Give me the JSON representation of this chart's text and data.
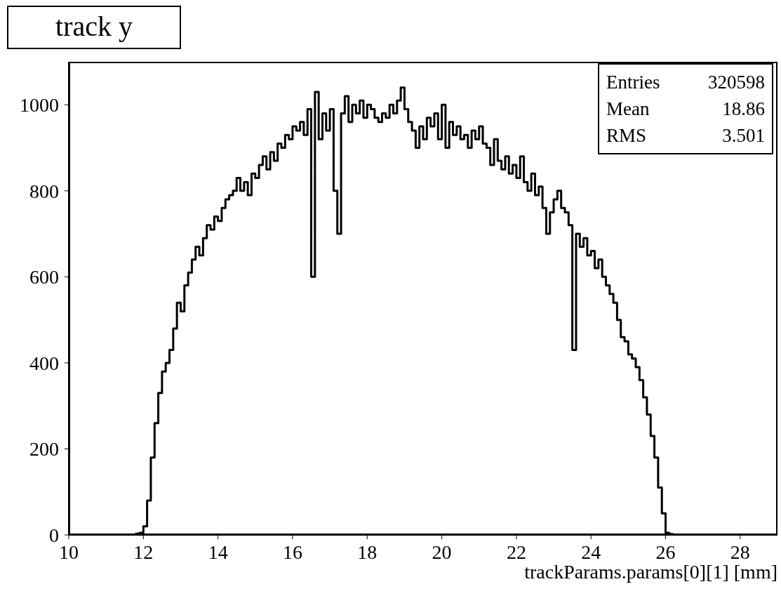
{
  "chart_data": {
    "type": "histogram",
    "title": "track y",
    "xlabel": "trackParams.params[0][1] [mm]",
    "bins": [
      10,
      10.1,
      10.2,
      10.3,
      10.4,
      10.5,
      10.6,
      10.7,
      10.8,
      10.9,
      11,
      11.1,
      11.2,
      11.3,
      11.4,
      11.5,
      11.6,
      11.7,
      11.8,
      11.9,
      12,
      12.1,
      12.2,
      12.3,
      12.4,
      12.5,
      12.6,
      12.7,
      12.8,
      12.9,
      13,
      13.1,
      13.2,
      13.3,
      13.4,
      13.5,
      13.6,
      13.7,
      13.8,
      13.9,
      14,
      14.1,
      14.2,
      14.3,
      14.4,
      14.5,
      14.6,
      14.7,
      14.8,
      14.9,
      15,
      15.1,
      15.2,
      15.3,
      15.4,
      15.5,
      15.6,
      15.7,
      15.8,
      15.9,
      16,
      16.1,
      16.2,
      16.3,
      16.4,
      16.5,
      16.6,
      16.7,
      16.8,
      16.9,
      17,
      17.1,
      17.2,
      17.3,
      17.4,
      17.5,
      17.6,
      17.7,
      17.8,
      17.9,
      18,
      18.1,
      18.2,
      18.3,
      18.4,
      18.5,
      18.6,
      18.7,
      18.8,
      18.9,
      19,
      19.1,
      19.2,
      19.3,
      19.4,
      19.5,
      19.6,
      19.7,
      19.8,
      19.9,
      20,
      20.1,
      20.2,
      20.3,
      20.4,
      20.5,
      20.6,
      20.7,
      20.8,
      20.9,
      21,
      21.1,
      21.2,
      21.3,
      21.4,
      21.5,
      21.6,
      21.7,
      21.8,
      21.9,
      22,
      22.1,
      22.2,
      22.3,
      22.4,
      22.5,
      22.6,
      22.7,
      22.8,
      22.9,
      23,
      23.1,
      23.2,
      23.3,
      23.4,
      23.5,
      23.6,
      23.7,
      23.8,
      23.9,
      24,
      24.1,
      24.2,
      24.3,
      24.4,
      24.5,
      24.6,
      24.7,
      24.8,
      24.9,
      25,
      25.1,
      25.2,
      25.3,
      25.4,
      25.5,
      25.6,
      25.7,
      25.8,
      25.9,
      26,
      26.1,
      26.2,
      26.3,
      26.4,
      26.5,
      26.6,
      26.7,
      26.8,
      26.9,
      27,
      27.1,
      27.2,
      27.3,
      27.4,
      27.5,
      27.6,
      27.7,
      27.8,
      27.9,
      28,
      28.1,
      28.2,
      28.3,
      28.4,
      28.5,
      28.6,
      28.7,
      28.8,
      28.9,
      29
    ],
    "values": [
      0,
      0,
      0,
      0,
      0,
      0,
      0,
      0,
      0,
      0,
      0,
      0,
      0,
      0,
      0,
      0,
      0,
      0,
      3,
      5,
      20,
      80,
      180,
      260,
      330,
      380,
      400,
      430,
      480,
      540,
      520,
      580,
      610,
      640,
      670,
      650,
      690,
      720,
      710,
      740,
      730,
      760,
      780,
      790,
      800,
      830,
      800,
      820,
      790,
      840,
      830,
      860,
      880,
      850,
      890,
      870,
      910,
      900,
      930,
      920,
      950,
      940,
      960,
      930,
      990,
      600,
      1030,
      920,
      980,
      940,
      990,
      800,
      700,
      980,
      1020,
      960,
      1000,
      980,
      1010,
      970,
      1000,
      990,
      970,
      960,
      980,
      970,
      1000,
      980,
      1010,
      1040,
      990,
      960,
      940,
      900,
      950,
      920,
      970,
      950,
      980,
      920,
      1000,
      900,
      960,
      930,
      950,
      920,
      930,
      900,
      940,
      920,
      950,
      910,
      900,
      860,
      920,
      870,
      850,
      880,
      840,
      860,
      830,
      880,
      820,
      800,
      840,
      790,
      810,
      760,
      700,
      750,
      780,
      800,
      760,
      750,
      720,
      430,
      700,
      670,
      690,
      650,
      660,
      620,
      640,
      600,
      580,
      560,
      540,
      500,
      460,
      450,
      420,
      410,
      390,
      360,
      320,
      280,
      230,
      180,
      110,
      50,
      5,
      2,
      0,
      0,
      0,
      0,
      0,
      0,
      0,
      0,
      0,
      0,
      0,
      0,
      0,
      0,
      0,
      0,
      0,
      0,
      0,
      0,
      0,
      0,
      0,
      0,
      0,
      0,
      0,
      0
    ],
    "color": "#000000",
    "xlim": [
      10,
      29
    ],
    "xticks": [
      10,
      12,
      14,
      16,
      18,
      20,
      22,
      24,
      26,
      28
    ],
    "ylim": [
      0,
      1100
    ],
    "yticks": [
      0,
      200,
      400,
      600,
      800,
      1000
    ],
    "grid": false,
    "annotations": [
      "Entries 320598",
      "Mean 18.86",
      "RMS 3.501"
    ]
  }
}
